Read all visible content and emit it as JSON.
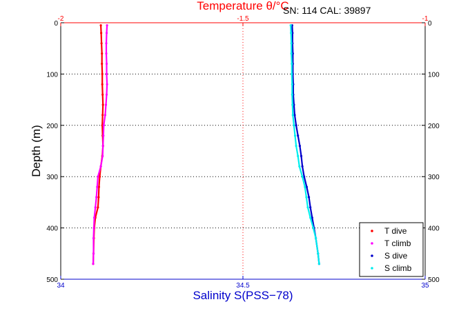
{
  "chart_data": {
    "type": "scatter",
    "annotation": "SN: 114  CAL: 39897",
    "ylabel": "Depth (m)",
    "ylim": [
      0,
      500
    ],
    "y_reversed": true,
    "y_ticks": [
      "0",
      "100",
      "200",
      "300",
      "400",
      "500"
    ],
    "top_axis": {
      "label": "Temperature θ/°C",
      "range": [
        -2,
        -1
      ],
      "ticks": [
        "-2",
        "-1.5",
        "-1"
      ],
      "color": "#ff0000"
    },
    "bottom_axis": {
      "label": "Salinity S(PSS−78)",
      "range": [
        34,
        35
      ],
      "ticks": [
        "34",
        "34.5",
        "35"
      ],
      "color": "#0000cc"
    },
    "grid": true,
    "legend_position": "bottom-right",
    "series": [
      {
        "name": "T dive",
        "axis": "top",
        "color": "#ff0000",
        "x": [
          -1.89,
          -1.889,
          -1.888,
          -1.887,
          -1.887,
          -1.886,
          -1.886,
          -1.885,
          -1.884,
          -1.885,
          -1.886,
          -1.885,
          -1.884,
          -1.886,
          -1.89,
          -1.893,
          -1.895,
          -1.896,
          -1.898,
          -1.905,
          -1.908,
          -1.909,
          -1.91,
          -1.911
        ],
        "y": [
          5,
          20,
          40,
          60,
          80,
          100,
          120,
          140,
          160,
          180,
          200,
          220,
          240,
          260,
          280,
          300,
          320,
          340,
          360,
          380,
          400,
          420,
          450,
          470
        ]
      },
      {
        "name": "T climb",
        "axis": "top",
        "color": "#ff00ff",
        "x": [
          -1.873,
          -1.874,
          -1.875,
          -1.875,
          -1.874,
          -1.874,
          -1.873,
          -1.874,
          -1.876,
          -1.878,
          -1.882,
          -1.883,
          -1.884,
          -1.885,
          -1.89,
          -1.898,
          -1.9,
          -1.902,
          -1.905,
          -1.908,
          -1.909,
          -1.91,
          -1.91,
          -1.911
        ],
        "y": [
          5,
          20,
          40,
          60,
          80,
          100,
          120,
          140,
          160,
          180,
          200,
          220,
          240,
          260,
          280,
          300,
          320,
          340,
          360,
          380,
          400,
          420,
          450,
          470
        ]
      },
      {
        "name": "S dive",
        "axis": "bottom",
        "color": "#0000cc",
        "x": [
          34.635,
          34.636,
          34.636,
          34.637,
          34.637,
          34.637,
          34.638,
          34.638,
          34.64,
          34.642,
          34.646,
          34.651,
          34.656,
          34.66,
          34.663,
          34.668,
          34.675,
          34.681,
          34.685,
          34.69,
          34.695,
          34.7,
          34.706,
          34.709
        ],
        "y": [
          5,
          20,
          40,
          60,
          80,
          100,
          120,
          140,
          160,
          180,
          200,
          220,
          240,
          260,
          280,
          300,
          320,
          340,
          360,
          380,
          400,
          420,
          450,
          470
        ]
      },
      {
        "name": "S climb",
        "axis": "bottom",
        "color": "#00eeee",
        "x": [
          34.631,
          34.632,
          34.633,
          34.633,
          34.634,
          34.634,
          34.635,
          34.635,
          34.636,
          34.637,
          34.64,
          34.643,
          34.646,
          34.651,
          34.655,
          34.663,
          34.67,
          34.674,
          34.678,
          34.685,
          34.693,
          34.7,
          34.706,
          34.709
        ],
        "y": [
          5,
          20,
          40,
          60,
          80,
          100,
          120,
          140,
          160,
          180,
          200,
          220,
          240,
          260,
          280,
          300,
          320,
          340,
          360,
          380,
          400,
          420,
          450,
          470
        ]
      }
    ]
  }
}
